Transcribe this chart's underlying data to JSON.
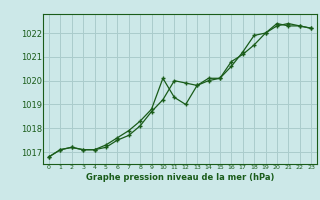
{
  "title": "Graphe pression niveau de la mer (hPa)",
  "background_color": "#cce8e8",
  "grid_color": "#aacccc",
  "line_color": "#1a5c1a",
  "xlim": [
    -0.5,
    23.5
  ],
  "ylim": [
    1016.5,
    1022.8
  ],
  "yticks": [
    1017,
    1018,
    1019,
    1020,
    1021,
    1022
  ],
  "xticks": [
    0,
    1,
    2,
    3,
    4,
    5,
    6,
    7,
    8,
    9,
    10,
    11,
    12,
    13,
    14,
    15,
    16,
    17,
    18,
    19,
    20,
    21,
    22,
    23
  ],
  "series1_x": [
    0,
    1,
    2,
    3,
    4,
    5,
    6,
    7,
    8,
    9,
    10,
    11,
    12,
    13,
    14,
    15,
    16,
    17,
    18,
    19,
    20,
    21,
    22,
    23
  ],
  "series1_y": [
    1016.8,
    1017.1,
    1017.2,
    1017.1,
    1017.1,
    1017.2,
    1017.5,
    1017.7,
    1018.1,
    1018.7,
    1019.2,
    1020.0,
    1019.9,
    1019.8,
    1020.0,
    1020.1,
    1020.8,
    1021.1,
    1021.5,
    1022.0,
    1022.3,
    1022.4,
    1022.3,
    1022.2
  ],
  "series2_x": [
    0,
    1,
    2,
    3,
    4,
    5,
    6,
    7,
    8,
    9,
    10,
    11,
    12,
    13,
    14,
    15,
    16,
    17,
    18,
    19,
    20,
    21,
    22,
    23
  ],
  "series2_y": [
    1016.8,
    1017.1,
    1017.2,
    1017.1,
    1017.1,
    1017.3,
    1017.6,
    1017.9,
    1018.3,
    1018.8,
    1020.1,
    1019.3,
    1019.0,
    1019.8,
    1020.1,
    1020.1,
    1020.6,
    1021.2,
    1021.9,
    1022.0,
    1022.4,
    1022.3,
    1022.3,
    1022.2
  ],
  "xlabel_fontsize": 6.0,
  "ytick_fontsize": 6.0,
  "xtick_fontsize": 4.5
}
